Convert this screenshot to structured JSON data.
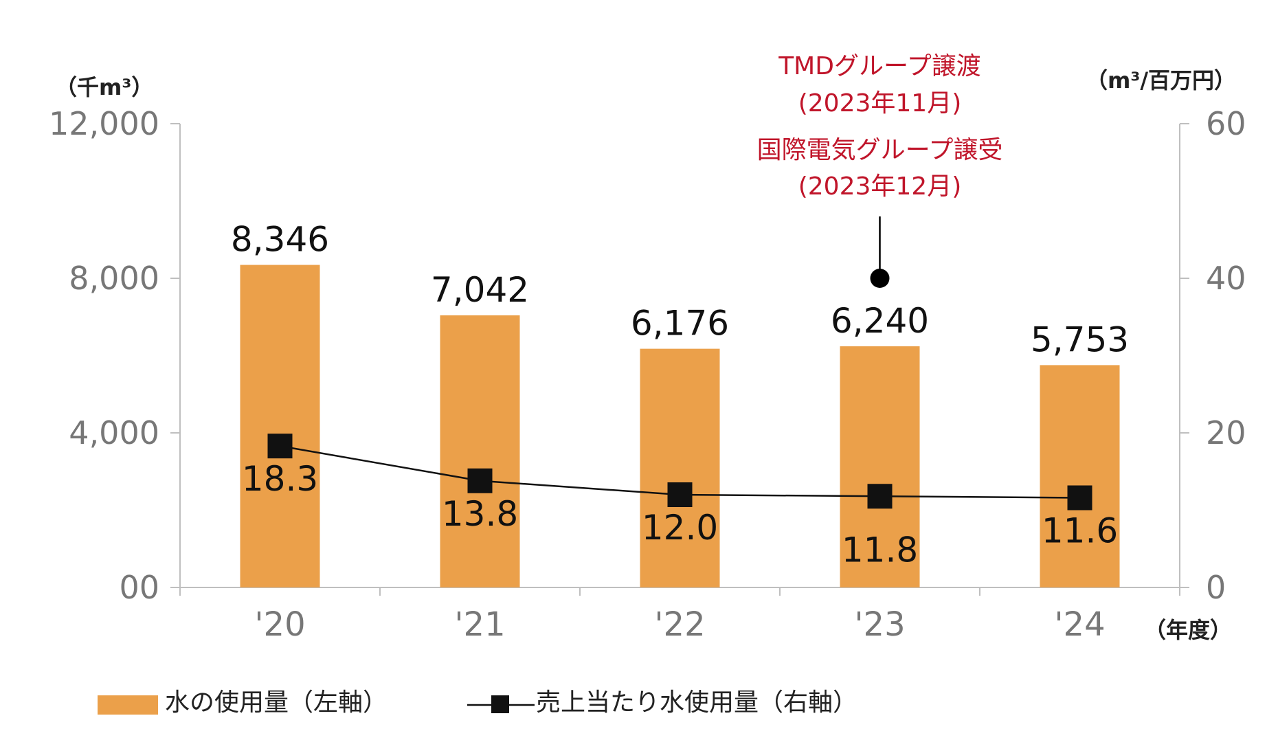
{
  "chart_data": {
    "type": "bar",
    "categories": [
      "'20",
      "'21",
      "'22",
      "'23",
      "'24"
    ],
    "series": [
      {
        "name": "水の使用量（左軸）",
        "type": "bar",
        "axis": "left",
        "values": [
          8346,
          7042,
          6176,
          6240,
          5753
        ],
        "labels": [
          "8,346",
          "7,042",
          "6,176",
          "6,240",
          "5,753"
        ],
        "color": "#eba04a"
      },
      {
        "name": "売上当たり水使用量（右軸）",
        "type": "line",
        "axis": "right",
        "values": [
          18.3,
          13.8,
          12.0,
          11.8,
          11.6
        ],
        "labels": [
          "18.3",
          "13.8",
          "12.0",
          "11.8",
          "11.6"
        ],
        "color": "#111111"
      }
    ],
    "y_left": {
      "unit": "（千m³）",
      "lim": [
        0,
        12000
      ],
      "ticks": [
        0,
        4000,
        8000,
        12000
      ],
      "tick_labels": [
        "00",
        "4,000",
        "8,000",
        "12,000"
      ]
    },
    "y_right": {
      "unit": "（m³/百万円）",
      "lim": [
        0,
        60
      ],
      "ticks": [
        0,
        20,
        40,
        60
      ],
      "tick_labels": [
        "0",
        "20",
        "40",
        "60"
      ]
    },
    "x_unit": "（年度）",
    "annotation": {
      "category": "'23",
      "value": 40,
      "lines": [
        "TMDグループ譲渡",
        "(2023年11月)",
        "国際電気グループ譲受",
        "(2023年12月)"
      ]
    },
    "grid": false,
    "legend_position": "bottom",
    "colors": {
      "bar": "#eba04a",
      "line": "#111111",
      "annotation": "#c0152a",
      "axis": "#bfbfbf"
    }
  }
}
